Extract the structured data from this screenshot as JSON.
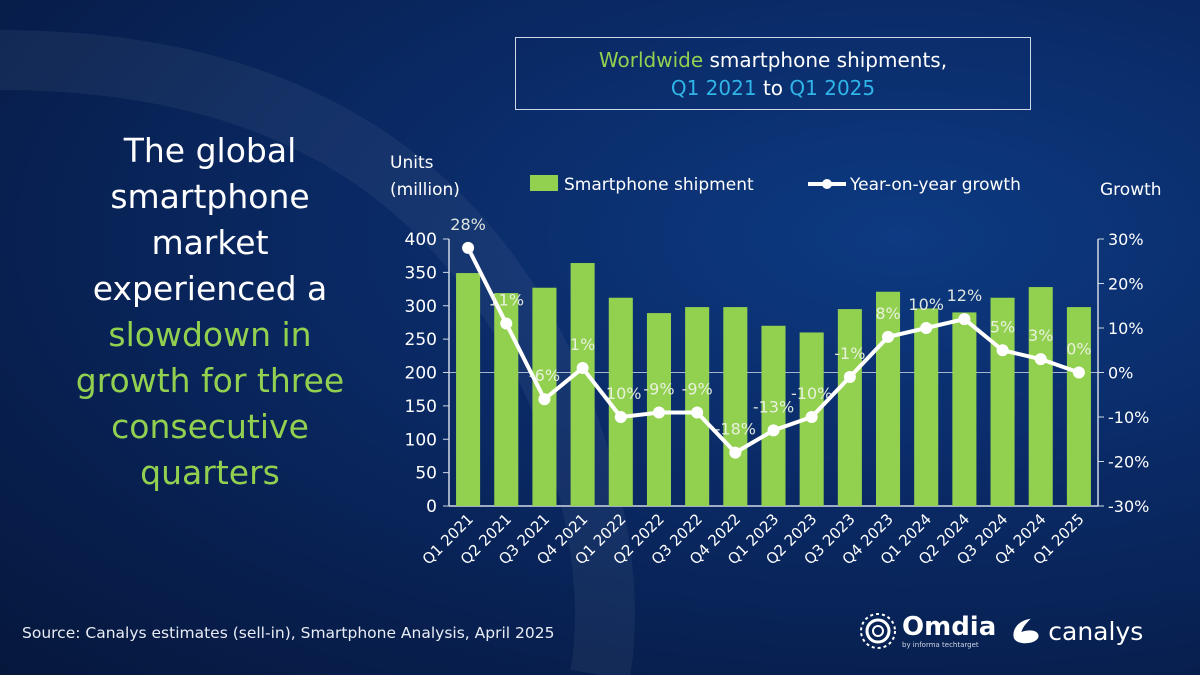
{
  "title": {
    "part1": "Worldwide",
    "part2": " smartphone shipments,",
    "part3": "Q1 2021",
    "part4": " to ",
    "part5": "Q1 2025"
  },
  "headline": {
    "white_lines": [
      "The global",
      "smartphone",
      "market",
      "experienced a"
    ],
    "green_lines": [
      "slowdown in",
      "growth for three",
      "consecutive",
      "quarters"
    ]
  },
  "source": "Source: Canalys estimates (sell-in), Smartphone Analysis, April 2025",
  "logos": {
    "omdia": "Omdia",
    "omdia_sub": "by informa techtarget",
    "canalys": "canalys"
  },
  "colors": {
    "bar": "#92d050",
    "line": "#ffffff",
    "background": "#0a2a66",
    "title_green": "#92d050",
    "title_blue": "#2fb5e8"
  },
  "chart_data": {
    "type": "bar+line",
    "categories": [
      "Q1 2021",
      "Q2 2021",
      "Q3 2021",
      "Q4 2021",
      "Q1 2022",
      "Q2 2022",
      "Q3 2022",
      "Q4 2022",
      "Q1 2023",
      "Q2 2023",
      "Q3 2023",
      "Q4 2023",
      "Q1 2024",
      "Q2 2024",
      "Q3 2024",
      "Q4 2024",
      "Q1 2025"
    ],
    "series": [
      {
        "name": "Smartphone shipment",
        "type": "bar",
        "axis": "left",
        "values": [
          349,
          319,
          327,
          364,
          312,
          289,
          298,
          298,
          270,
          260,
          295,
          321,
          296,
          290,
          312,
          328,
          298
        ]
      },
      {
        "name": "Year-on-year growth",
        "type": "line",
        "axis": "right",
        "values": [
          28,
          11,
          -6,
          1,
          -10,
          -9,
          -9,
          -18,
          -13,
          -10,
          -1,
          8,
          10,
          12,
          5,
          3,
          0
        ],
        "labels": [
          "28%",
          "11%",
          "-6%",
          "1%",
          "-10%",
          "-9%",
          "-9%",
          "-18%",
          "-13%",
          "-10%",
          "-1%",
          "8%",
          "10%",
          "12%",
          "5%",
          "3%",
          "0%"
        ]
      }
    ],
    "ylabel_left": [
      "Units",
      "(million)"
    ],
    "ylabel_right": "Growth",
    "ylim_left": [
      0,
      400
    ],
    "yticks_left": [
      "0",
      "50",
      "100",
      "150",
      "200",
      "250",
      "300",
      "350",
      "400"
    ],
    "ylim_right": [
      -30,
      30
    ],
    "yticks_right": [
      "-30%",
      "-20%",
      "-10%",
      "0%",
      "10%",
      "20%",
      "30%"
    ],
    "legend": "top",
    "grid": false
  }
}
